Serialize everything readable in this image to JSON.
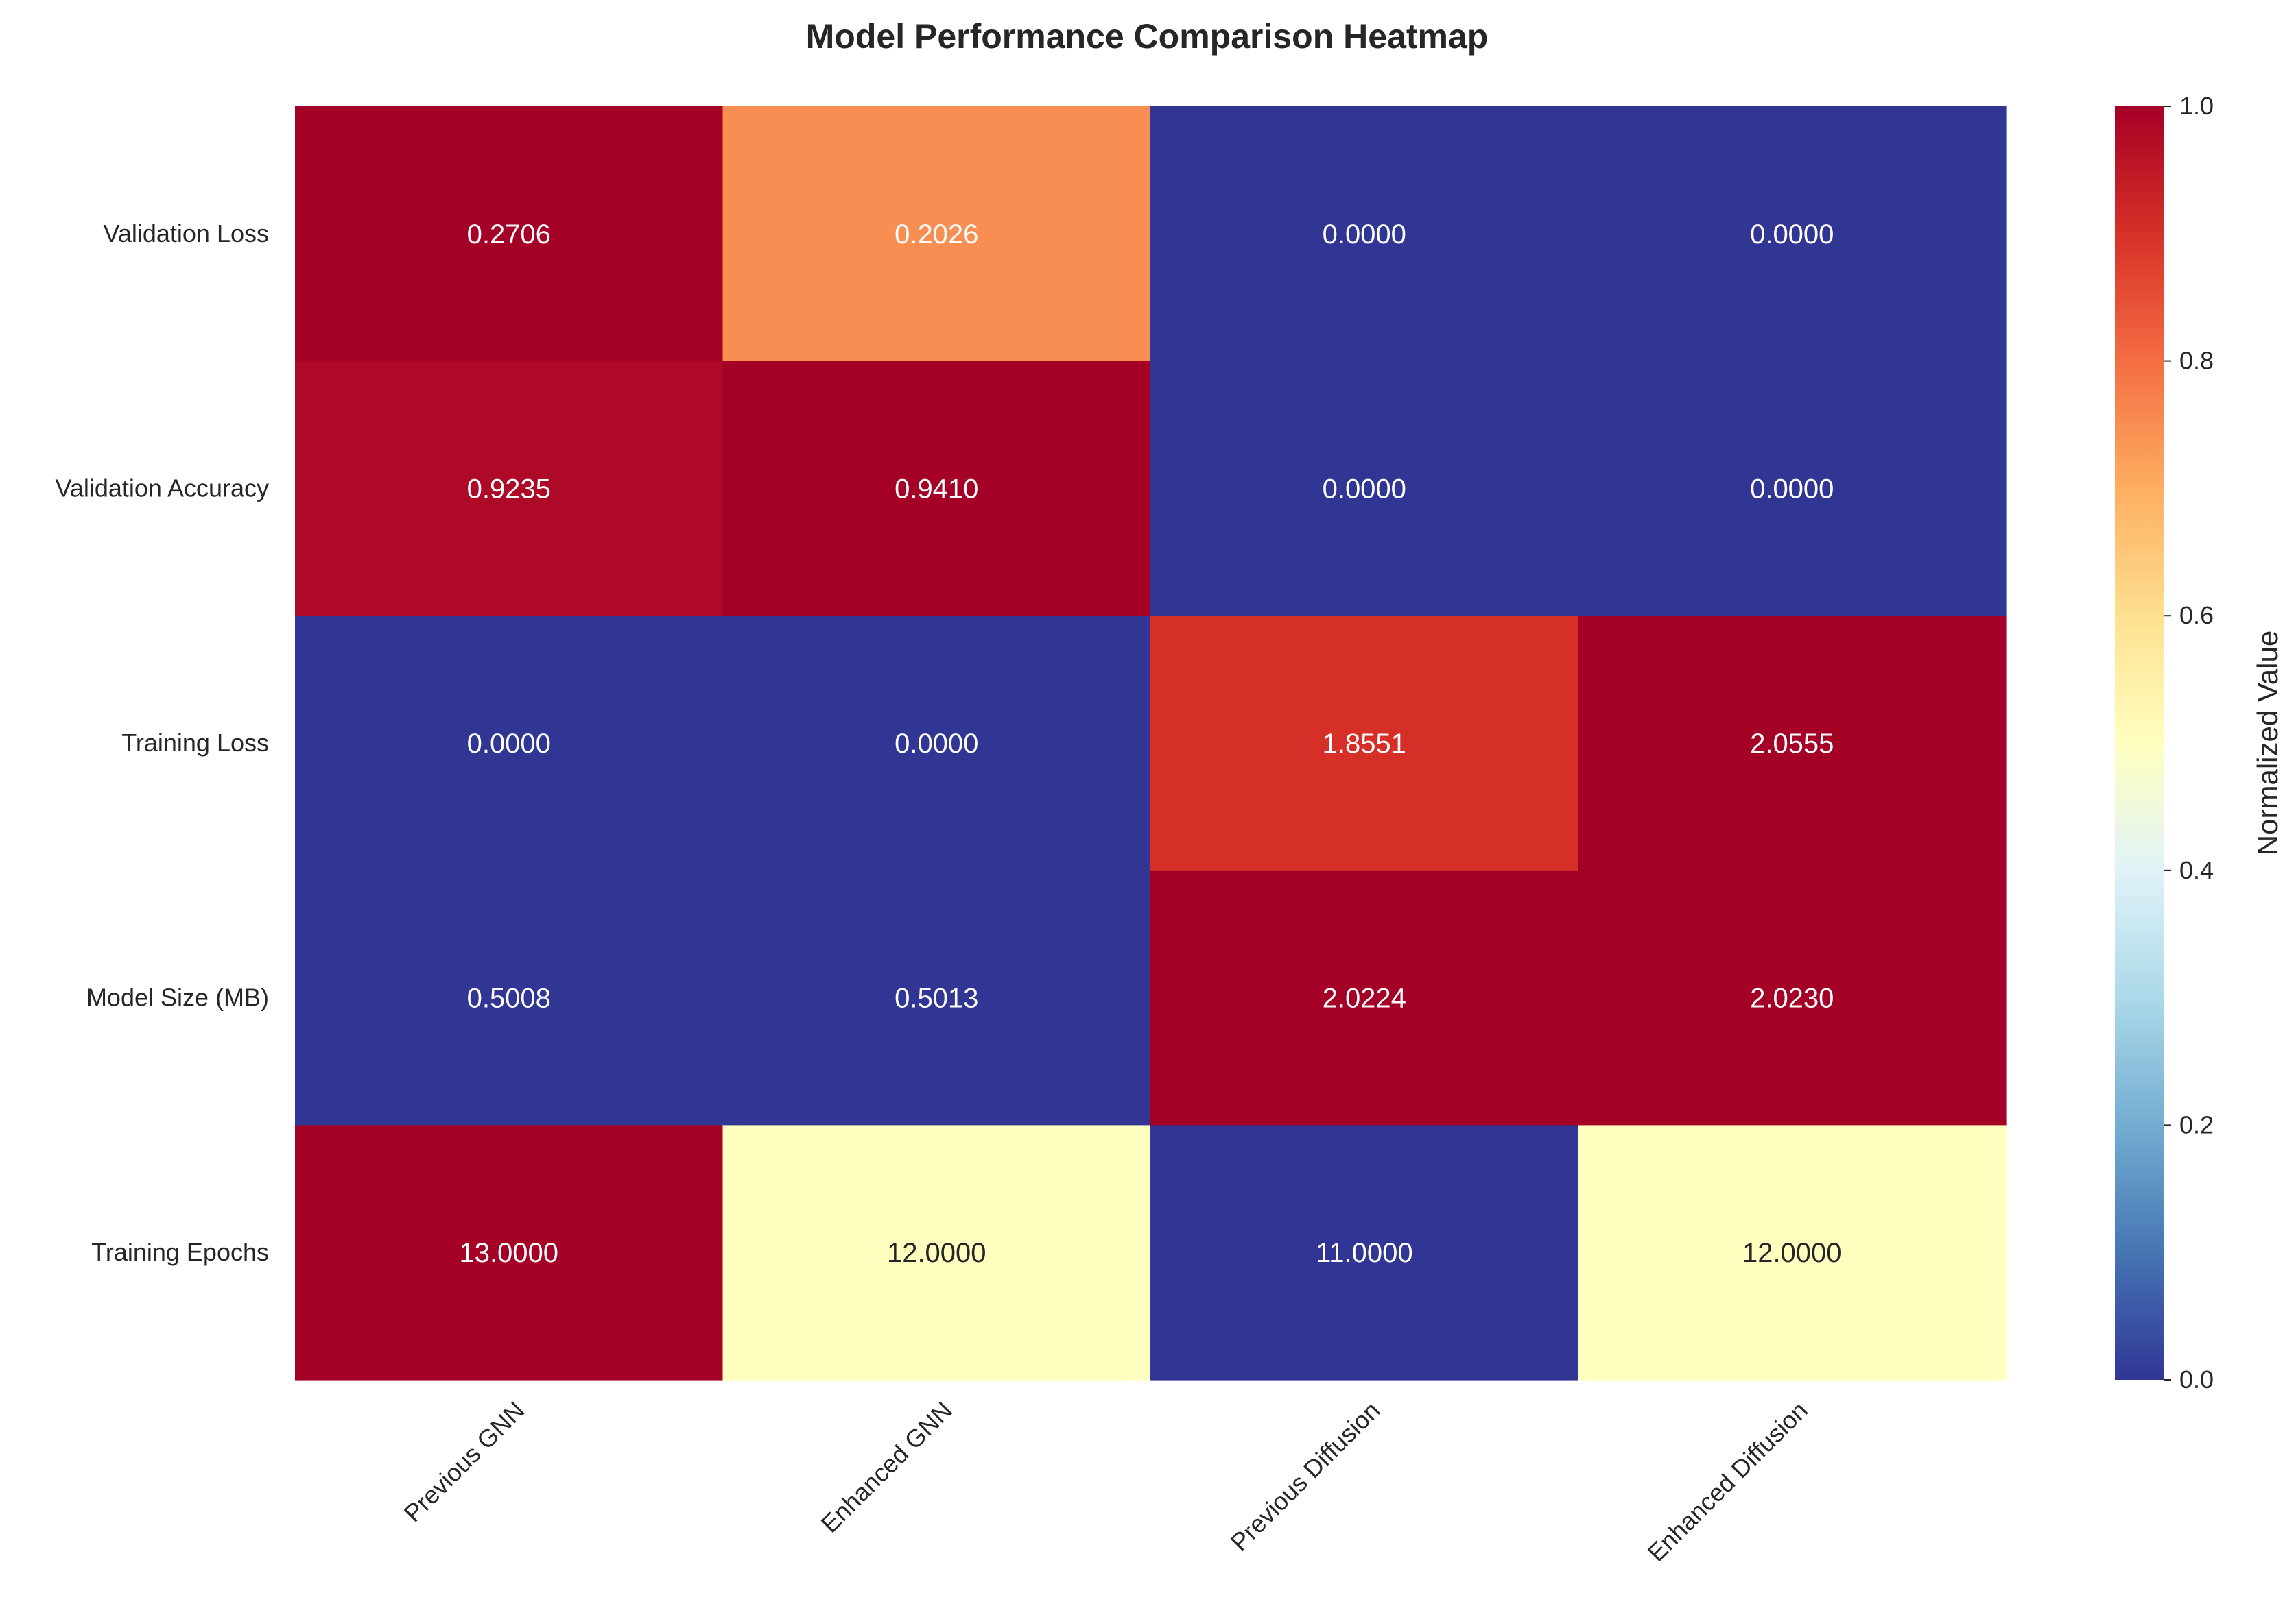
{
  "chart_data": {
    "type": "heatmap",
    "title": "Model Performance Comparison Heatmap",
    "columns": [
      "Previous GNN",
      "Enhanced GNN",
      "Previous Diffusion",
      "Enhanced Diffusion"
    ],
    "rows": [
      "Validation Loss",
      "Validation Accuracy",
      "Training Loss",
      "Model Size (MB)",
      "Training Epochs"
    ],
    "values": [
      [
        0.2706,
        0.2026,
        0.0,
        0.0
      ],
      [
        0.9235,
        0.941,
        0.0,
        0.0
      ],
      [
        0.0,
        0.0,
        1.8551,
        2.0555
      ],
      [
        0.5008,
        0.5013,
        2.0224,
        2.023
      ],
      [
        13.0,
        12.0,
        11.0,
        12.0
      ]
    ],
    "value_labels": [
      [
        "0.2706",
        "0.2026",
        "0.0000",
        "0.0000"
      ],
      [
        "0.9235",
        "0.9410",
        "0.0000",
        "0.0000"
      ],
      [
        "0.0000",
        "0.0000",
        "1.8551",
        "2.0555"
      ],
      [
        "0.5008",
        "0.5013",
        "2.0224",
        "2.0230"
      ],
      [
        "13.0000",
        "12.0000",
        "11.0000",
        "12.0000"
      ]
    ],
    "normalization": "per-row min-max",
    "colormap": "RdYlBu_r",
    "colorbar": {
      "label": "Normalized Value",
      "range": [
        0,
        1
      ],
      "ticks": [
        "0.0",
        "0.2",
        "0.4",
        "0.6",
        "0.8",
        "1.0"
      ]
    },
    "colors": {
      "low": "#313695",
      "mid": "#ffffbf",
      "high": "#a50026"
    }
  }
}
